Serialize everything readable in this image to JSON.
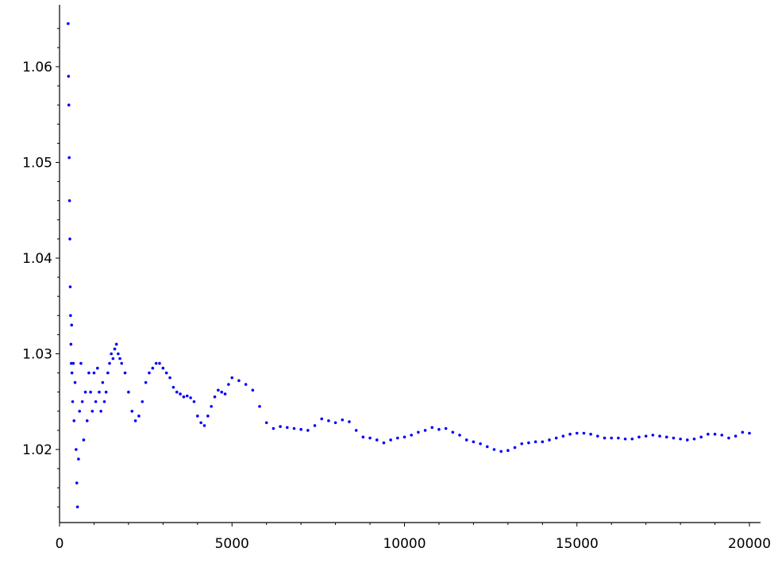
{
  "chart_data": {
    "type": "scatter",
    "title": "",
    "xlabel": "",
    "ylabel": "",
    "xlim": [
      0,
      20000
    ],
    "ylim": [
      1.0125,
      1.0655
    ],
    "x_ticks": [
      0,
      5000,
      10000,
      15000,
      20000
    ],
    "x_tick_labels": [
      "0",
      "5000",
      "10000",
      "15000",
      "20000"
    ],
    "y_ticks": [
      1.02,
      1.03,
      1.04,
      1.05,
      1.06
    ],
    "y_tick_labels": [
      "1.02",
      "1.03",
      "1.04",
      "1.05",
      "1.06"
    ],
    "grid": false,
    "legend": "none",
    "marker_color": "#0000ff",
    "series": [
      {
        "values": [
          [
            250,
            1.0645
          ],
          [
            260,
            1.059
          ],
          [
            270,
            1.056
          ],
          [
            280,
            1.0505
          ],
          [
            290,
            1.046
          ],
          [
            300,
            1.042
          ],
          [
            310,
            1.037
          ],
          [
            320,
            1.034
          ],
          [
            330,
            1.031
          ],
          [
            340,
            1.029
          ],
          [
            350,
            1.033
          ],
          [
            360,
            1.028
          ],
          [
            380,
            1.025
          ],
          [
            400,
            1.029
          ],
          [
            420,
            1.023
          ],
          [
            450,
            1.027
          ],
          [
            480,
            1.02
          ],
          [
            500,
            1.0165
          ],
          [
            520,
            1.014
          ],
          [
            550,
            1.019
          ],
          [
            580,
            1.024
          ],
          [
            620,
            1.029
          ],
          [
            660,
            1.025
          ],
          [
            700,
            1.021
          ],
          [
            750,
            1.026
          ],
          [
            800,
            1.023
          ],
          [
            850,
            1.028
          ],
          [
            900,
            1.026
          ],
          [
            950,
            1.024
          ],
          [
            1000,
            1.028
          ],
          [
            1050,
            1.025
          ],
          [
            1100,
            1.0285
          ],
          [
            1150,
            1.026
          ],
          [
            1200,
            1.024
          ],
          [
            1250,
            1.027
          ],
          [
            1300,
            1.025
          ],
          [
            1350,
            1.026
          ],
          [
            1400,
            1.028
          ],
          [
            1450,
            1.029
          ],
          [
            1500,
            1.03
          ],
          [
            1550,
            1.0295
          ],
          [
            1600,
            1.0305
          ],
          [
            1650,
            1.031
          ],
          [
            1700,
            1.03
          ],
          [
            1750,
            1.0295
          ],
          [
            1800,
            1.029
          ],
          [
            1900,
            1.028
          ],
          [
            2000,
            1.026
          ],
          [
            2100,
            1.024
          ],
          [
            2200,
            1.023
          ],
          [
            2300,
            1.0235
          ],
          [
            2400,
            1.025
          ],
          [
            2500,
            1.027
          ],
          [
            2600,
            1.028
          ],
          [
            2700,
            1.0285
          ],
          [
            2800,
            1.029
          ],
          [
            2900,
            1.029
          ],
          [
            3000,
            1.0285
          ],
          [
            3100,
            1.028
          ],
          [
            3200,
            1.0275
          ],
          [
            3300,
            1.0265
          ],
          [
            3400,
            1.026
          ],
          [
            3500,
            1.0258
          ],
          [
            3600,
            1.0255
          ],
          [
            3700,
            1.0256
          ],
          [
            3800,
            1.0254
          ],
          [
            3900,
            1.025
          ],
          [
            4000,
            1.0235
          ],
          [
            4100,
            1.0228
          ],
          [
            4200,
            1.0225
          ],
          [
            4300,
            1.0235
          ],
          [
            4400,
            1.0245
          ],
          [
            4500,
            1.0255
          ],
          [
            4600,
            1.0262
          ],
          [
            4700,
            1.026
          ],
          [
            4800,
            1.0258
          ],
          [
            4900,
            1.0268
          ],
          [
            5000,
            1.0275
          ],
          [
            5200,
            1.0272
          ],
          [
            5400,
            1.0268
          ],
          [
            5600,
            1.0262
          ],
          [
            5800,
            1.0245
          ],
          [
            6000,
            1.0228
          ],
          [
            6200,
            1.0222
          ],
          [
            6400,
            1.0224
          ],
          [
            6600,
            1.0223
          ],
          [
            6800,
            1.0222
          ],
          [
            7000,
            1.0221
          ],
          [
            7200,
            1.022
          ],
          [
            7400,
            1.0225
          ],
          [
            7600,
            1.0232
          ],
          [
            7800,
            1.023
          ],
          [
            8000,
            1.0228
          ],
          [
            8200,
            1.0231
          ],
          [
            8400,
            1.0229
          ],
          [
            8600,
            1.022
          ],
          [
            8800,
            1.0213
          ],
          [
            9000,
            1.0212
          ],
          [
            9200,
            1.021
          ],
          [
            9400,
            1.0207
          ],
          [
            9600,
            1.021
          ],
          [
            9800,
            1.0212
          ],
          [
            10000,
            1.0213
          ],
          [
            10200,
            1.0215
          ],
          [
            10400,
            1.0218
          ],
          [
            10600,
            1.022
          ],
          [
            10800,
            1.0223
          ],
          [
            11000,
            1.0221
          ],
          [
            11200,
            1.0222
          ],
          [
            11400,
            1.0218
          ],
          [
            11600,
            1.0215
          ],
          [
            11800,
            1.021
          ],
          [
            12000,
            1.0208
          ],
          [
            12200,
            1.0206
          ],
          [
            12400,
            1.0203
          ],
          [
            12600,
            1.02
          ],
          [
            12800,
            1.0198
          ],
          [
            13000,
            1.0199
          ],
          [
            13200,
            1.0202
          ],
          [
            13400,
            1.0206
          ],
          [
            13600,
            1.0207
          ],
          [
            13800,
            1.0208
          ],
          [
            14000,
            1.0208
          ],
          [
            14200,
            1.021
          ],
          [
            14400,
            1.0212
          ],
          [
            14600,
            1.0214
          ],
          [
            14800,
            1.0216
          ],
          [
            15000,
            1.0217
          ],
          [
            15200,
            1.0217
          ],
          [
            15400,
            1.0216
          ],
          [
            15600,
            1.0214
          ],
          [
            15800,
            1.0212
          ],
          [
            16000,
            1.0212
          ],
          [
            16200,
            1.0212
          ],
          [
            16400,
            1.0211
          ],
          [
            16600,
            1.0211
          ],
          [
            16800,
            1.0213
          ],
          [
            17000,
            1.0214
          ],
          [
            17200,
            1.0215
          ],
          [
            17400,
            1.0214
          ],
          [
            17600,
            1.0213
          ],
          [
            17800,
            1.0212
          ],
          [
            18000,
            1.0211
          ],
          [
            18200,
            1.021
          ],
          [
            18400,
            1.0211
          ],
          [
            18600,
            1.0213
          ],
          [
            18800,
            1.0216
          ],
          [
            19000,
            1.0216
          ],
          [
            19200,
            1.0215
          ],
          [
            19400,
            1.0212
          ],
          [
            19600,
            1.0214
          ],
          [
            19800,
            1.0218
          ],
          [
            20000,
            1.0217
          ]
        ]
      }
    ]
  }
}
